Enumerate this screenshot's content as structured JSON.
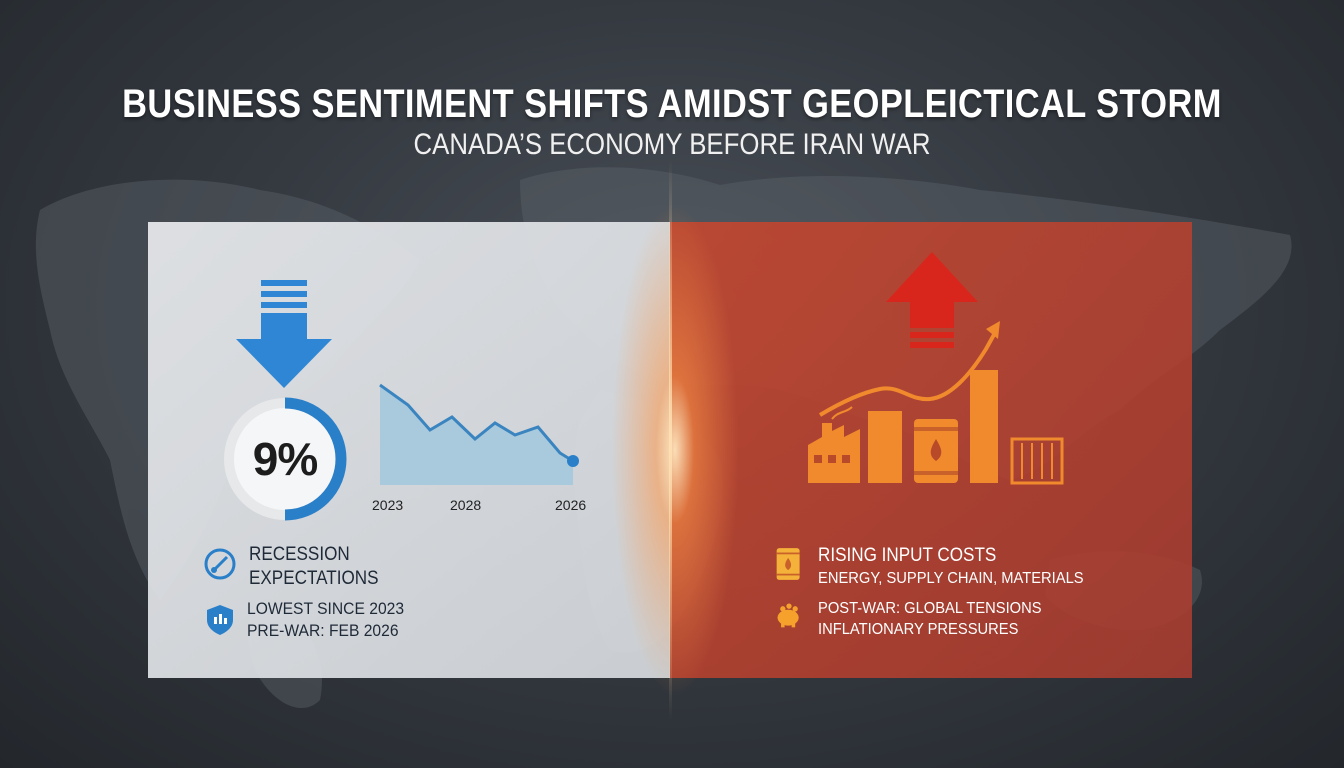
{
  "header": {
    "title": "BUSINESS SENTIMENT SHIFTS AMIDST GEOPLEICTICAL STORM",
    "subtitle": "CANADA’S ECONOMY BEFORE IRAN WAR"
  },
  "left_panel": {
    "gauge": {
      "value_label": "9%",
      "fill_fraction": 0.5
    },
    "trend_chart": {
      "x_labels": [
        "2023",
        "2028",
        "2026"
      ]
    },
    "labels": {
      "recession_line1": "RECESSION",
      "recession_line2": "EXPECTATIONS",
      "lowest_since": "LOWEST SINCE 2023",
      "pre_war": "PRE-WAR: FEB 2026"
    }
  },
  "right_panel": {
    "labels": {
      "rising_costs": "RISING INPUT COSTS",
      "rising_costs_detail": "ENERGY, SUPPLY CHAIN, MATERIALS",
      "post_war": "POST-WAR: GLOBAL TENSIONS",
      "inflation": "INFLATIONARY PRESSURES"
    }
  },
  "colors": {
    "down_arrow": "#2e86d4",
    "gauge_fill": "#2a7fc9",
    "area_fill": "#a9c9dc",
    "up_arrow": "#d9261c",
    "orange": "#f08a2c"
  },
  "icons": [
    "down-arrow-icon",
    "up-arrow-icon",
    "factory-icon",
    "oil-barrel-icon",
    "container-icon",
    "piggy-bank-icon",
    "shield-icon",
    "gauge-needle-icon"
  ]
}
